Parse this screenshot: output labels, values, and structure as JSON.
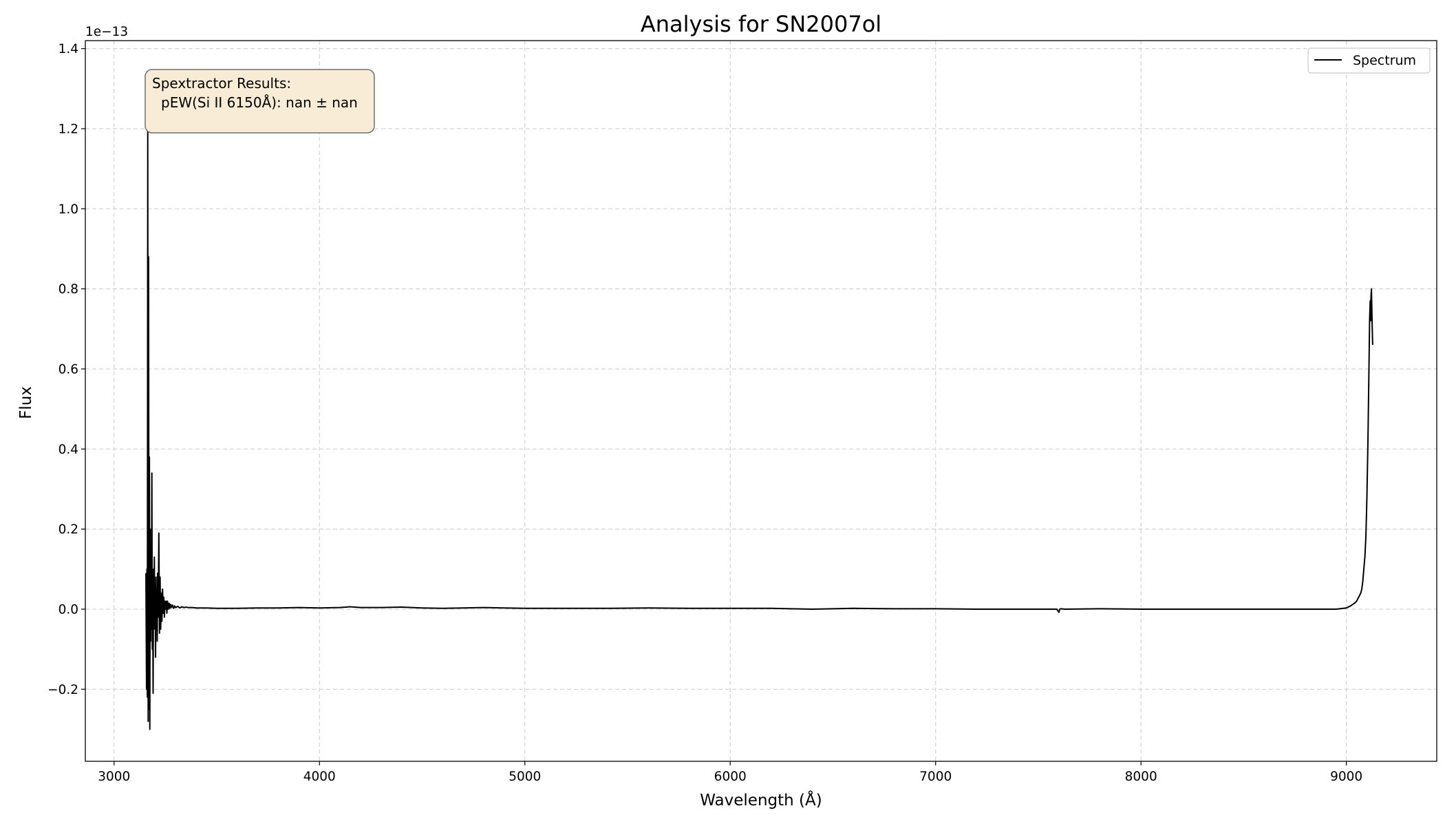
{
  "chart_data": {
    "type": "line",
    "title": "Analysis for SN2007ol",
    "xlabel": "Wavelength (Å)",
    "ylabel": "Flux",
    "y_offset_label": "1e−13",
    "xlim": [
      2860,
      9440
    ],
    "ylim": [
      -0.38,
      1.42
    ],
    "x_ticks": [
      3000,
      4000,
      5000,
      6000,
      7000,
      8000,
      9000
    ],
    "y_ticks": [
      -0.2,
      0.0,
      0.2,
      0.4,
      0.6,
      0.8,
      1.0,
      1.2,
      1.4
    ],
    "x_tick_labels": [
      "3000",
      "4000",
      "5000",
      "6000",
      "7000",
      "8000",
      "9000"
    ],
    "y_tick_labels": [
      "−0.2",
      "0.0",
      "0.2",
      "0.4",
      "0.6",
      "0.8",
      "1.0",
      "1.2",
      "1.4"
    ],
    "grid": true,
    "legend": {
      "position": "top-right",
      "entries": [
        "Spectrum"
      ]
    },
    "annotation": {
      "line1": "Spextractor Results:",
      "line2": "pEW(Si II 6150Å): nan ± nan",
      "box_color": "#f9ecd6"
    },
    "series": [
      {
        "name": "Spectrum",
        "color": "#000000",
        "x": [
          3155,
          3158,
          3160,
          3162,
          3164,
          3166,
          3168,
          3170,
          3172,
          3174,
          3176,
          3178,
          3180,
          3182,
          3184,
          3186,
          3188,
          3190,
          3192,
          3194,
          3196,
          3198,
          3200,
          3202,
          3204,
          3206,
          3208,
          3210,
          3212,
          3215,
          3218,
          3221,
          3224,
          3227,
          3230,
          3233,
          3236,
          3239,
          3242,
          3245,
          3248,
          3251,
          3254,
          3257,
          3260,
          3264,
          3268,
          3272,
          3276,
          3280,
          3285,
          3290,
          3295,
          3300,
          3310,
          3320,
          3330,
          3340,
          3350,
          3360,
          3380,
          3400,
          3450,
          3500,
          3600,
          3700,
          3800,
          3900,
          4000,
          4100,
          4150,
          4200,
          4300,
          4400,
          4500,
          4600,
          4700,
          4800,
          4900,
          5000,
          5200,
          5400,
          5600,
          5800,
          6000,
          6200,
          6400,
          6600,
          6800,
          7000,
          7200,
          7400,
          7590,
          7600,
          7605,
          7610,
          7630,
          7800,
          8000,
          8200,
          8400,
          8600,
          8800,
          8950,
          9000,
          9020,
          9040,
          9050,
          9060,
          9070,
          9075,
          9080,
          9085,
          9090,
          9095,
          9100,
          9105,
          9110,
          9113,
          9116,
          9118,
          9120,
          9122,
          9124,
          9126,
          9128
        ],
        "y": [
          0.09,
          -0.2,
          0.1,
          -0.22,
          1.21,
          -0.28,
          0.88,
          -0.25,
          0.38,
          -0.3,
          0.2,
          -0.08,
          0.1,
          -0.05,
          0.34,
          -0.1,
          0.07,
          -0.21,
          0.1,
          -0.03,
          0.13,
          -0.05,
          0.06,
          -0.12,
          0.08,
          -0.04,
          0.05,
          -0.08,
          0.09,
          -0.02,
          0.19,
          -0.06,
          0.08,
          -0.05,
          0.04,
          -0.03,
          0.05,
          -0.01,
          0.03,
          -0.02,
          0.02,
          0.0,
          0.02,
          -0.01,
          0.02,
          0.0,
          0.015,
          0.002,
          0.012,
          0.004,
          0.01,
          0.002,
          0.008,
          0.004,
          0.007,
          0.003,
          0.006,
          0.004,
          0.005,
          0.004,
          0.004,
          0.003,
          0.003,
          0.002,
          0.002,
          0.003,
          0.003,
          0.004,
          0.003,
          0.004,
          0.006,
          0.004,
          0.004,
          0.005,
          0.003,
          0.002,
          0.003,
          0.004,
          0.003,
          0.002,
          0.002,
          0.002,
          0.003,
          0.002,
          0.002,
          0.002,
          0.0,
          0.002,
          0.001,
          0.001,
          0.0,
          0.0,
          0.0,
          -0.008,
          0.0,
          0.001,
          0.0,
          0.001,
          0.0,
          0.0,
          0.0,
          0.0,
          0.0,
          0.0,
          0.003,
          0.008,
          0.015,
          0.02,
          0.03,
          0.04,
          0.05,
          0.07,
          0.1,
          0.13,
          0.18,
          0.28,
          0.42,
          0.6,
          0.72,
          0.77,
          0.72,
          0.78,
          0.8,
          0.75,
          0.7,
          0.66
        ]
      }
    ]
  }
}
